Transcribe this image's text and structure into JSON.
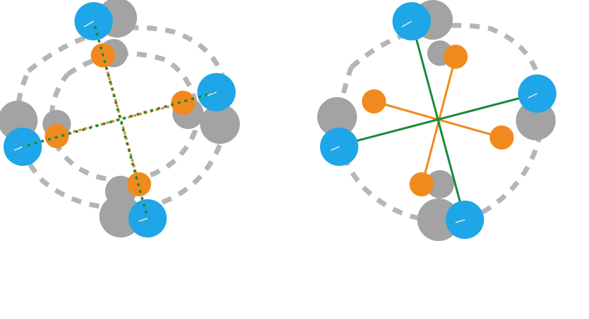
{
  "diagram": {
    "panels": [
      {
        "id": "left",
        "label": "",
        "axes_style": "dotted",
        "guide_style": "dashed"
      },
      {
        "id": "right",
        "label": "",
        "axes_style": "solid",
        "guide_style": "dashed"
      }
    ],
    "colors": {
      "blue": "#1ea6e8",
      "orange": "#f08a1c",
      "green": "#1a8a3c",
      "gray": "#9a9a9a",
      "dash": "#b5b5b5"
    }
  }
}
